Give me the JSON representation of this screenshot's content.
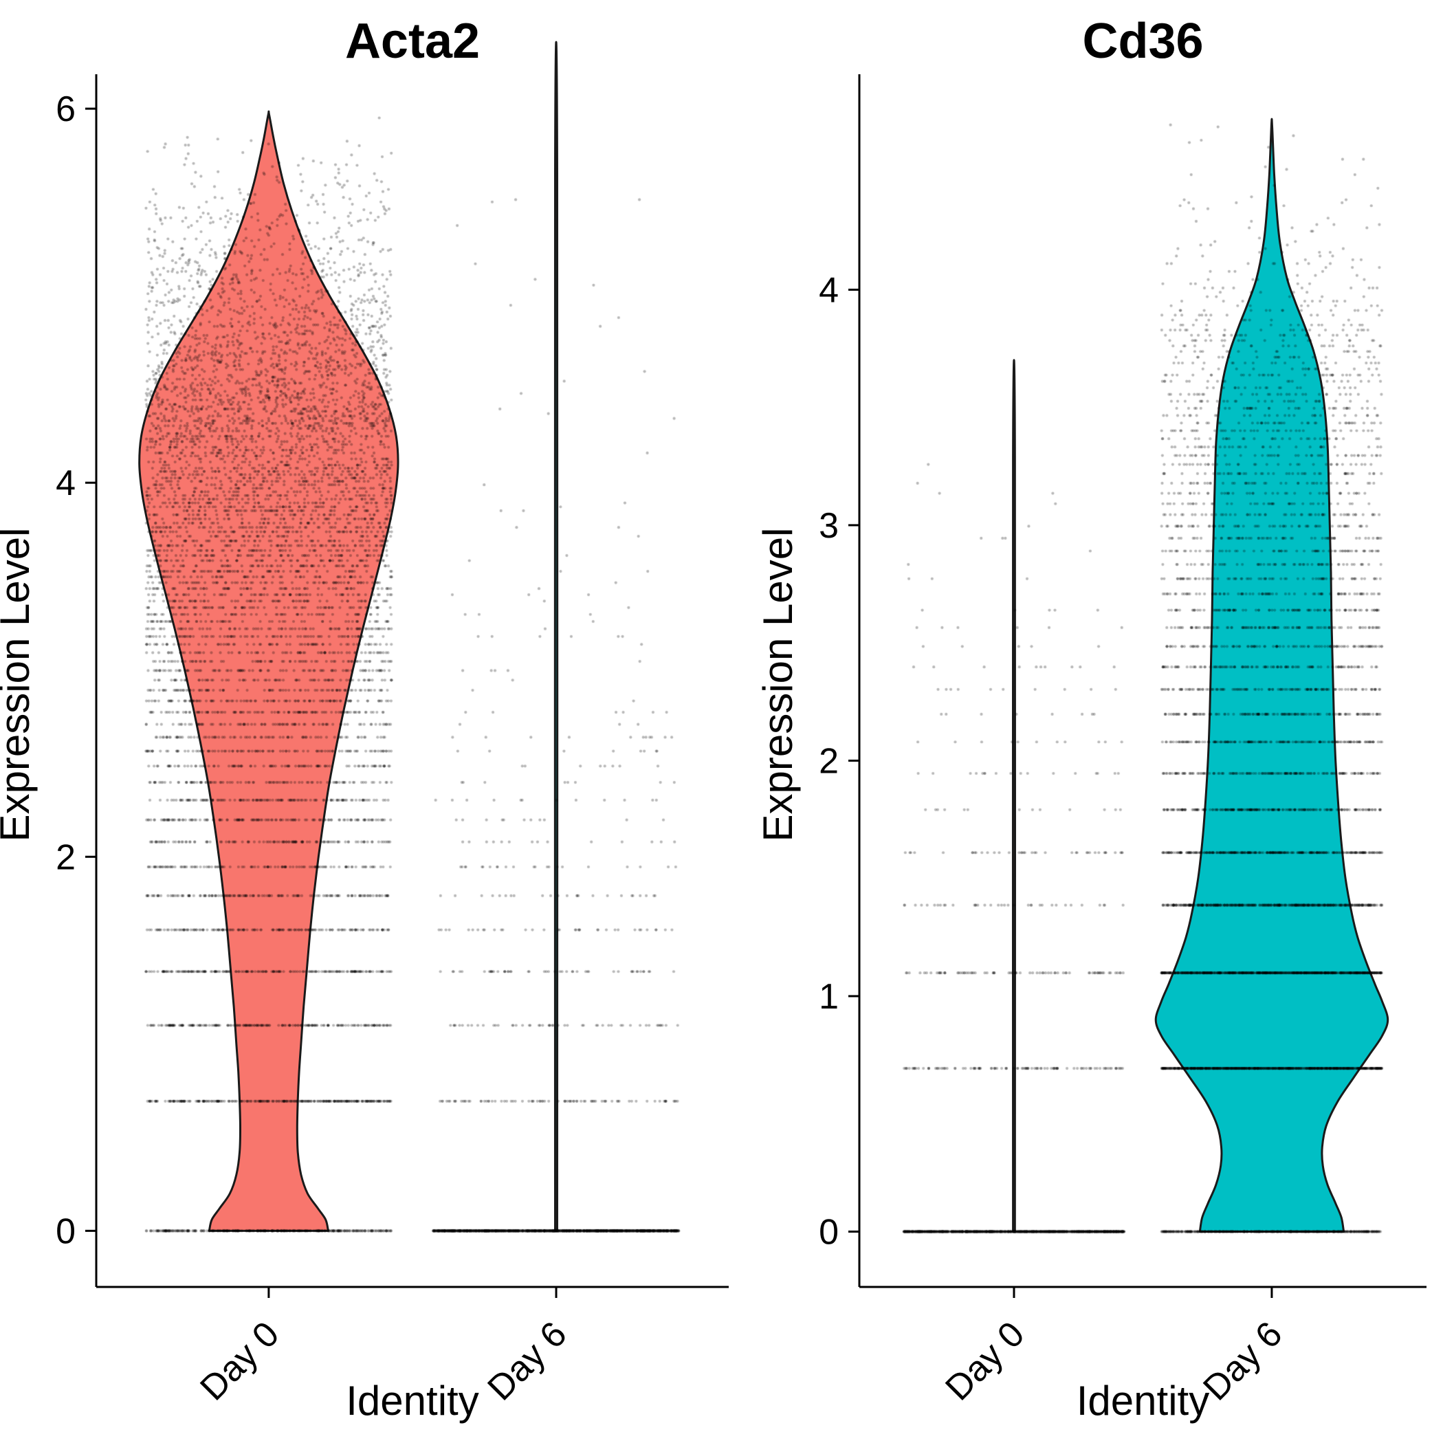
{
  "figure": {
    "background": "#FFFFFF",
    "text_color": "#000000",
    "axis_color": "#000000",
    "outline_color": "#1A1A1A",
    "point_color": "#000000",
    "day0_color": "#F8766D",
    "day6_color": "#00BFC4"
  },
  "chart_data": [
    {
      "type": "violin",
      "title": "Acta2",
      "xlabel": "Identity",
      "ylabel": "Expression Level",
      "categories": [
        "Day 0",
        "Day 6"
      ],
      "ylim": [
        -0.3,
        6.14
      ],
      "yticks": [
        0,
        2,
        4,
        6
      ],
      "legend": false,
      "series": [
        {
          "name": "Day 0",
          "fill": "#F8766D",
          "max_expression": 5.97,
          "n_points": 7000,
          "violin_width_profile": [
            [
              0,
              0.46
            ],
            [
              0.06,
              0.44
            ],
            [
              0.12,
              0.38
            ],
            [
              0.2,
              0.3
            ],
            [
              0.3,
              0.25
            ],
            [
              0.42,
              0.225
            ],
            [
              0.55,
              0.22
            ],
            [
              0.7,
              0.225
            ],
            [
              0.85,
              0.235
            ],
            [
              1,
              0.25
            ],
            [
              1.2,
              0.27
            ],
            [
              1.4,
              0.295
            ],
            [
              1.6,
              0.32
            ],
            [
              1.8,
              0.35
            ],
            [
              2,
              0.385
            ],
            [
              2.2,
              0.425
            ],
            [
              2.4,
              0.47
            ],
            [
              2.6,
              0.525
            ],
            [
              2.8,
              0.585
            ],
            [
              3,
              0.65
            ],
            [
              3.2,
              0.72
            ],
            [
              3.4,
              0.795
            ],
            [
              3.6,
              0.87
            ],
            [
              3.8,
              0.94
            ],
            [
              3.95,
              0.98
            ],
            [
              4.1,
              1
            ],
            [
              4.25,
              0.985
            ],
            [
              4.4,
              0.93
            ],
            [
              4.55,
              0.845
            ],
            [
              4.7,
              0.73
            ],
            [
              4.85,
              0.6
            ],
            [
              5,
              0.47
            ],
            [
              5.15,
              0.355
            ],
            [
              5.3,
              0.26
            ],
            [
              5.45,
              0.18
            ],
            [
              5.6,
              0.115
            ],
            [
              5.75,
              0.065
            ],
            [
              5.85,
              0.035
            ],
            [
              5.97,
              0.003
            ]
          ]
        },
        {
          "name": "Day 6",
          "fill": "#00BFC4",
          "max_expression": 5.65,
          "n_points": 1700,
          "violin_width_profile": [
            [
              0,
              0.008
            ],
            [
              5.65,
              0.008
            ]
          ],
          "points_profile": [
            [
              0,
              26
            ],
            [
              0.38,
              9
            ],
            [
              0.41,
              1.1
            ],
            [
              0.7,
              1.05
            ],
            [
              1,
              0.95
            ],
            [
              1.3,
              0.9
            ],
            [
              1.6,
              0.85
            ],
            [
              1.9,
              0.75
            ],
            [
              2.2,
              0.6
            ],
            [
              2.5,
              0.42
            ],
            [
              2.8,
              0.3
            ],
            [
              3.1,
              0.22
            ],
            [
              3.5,
              0.16
            ],
            [
              4,
              0.12
            ],
            [
              4.5,
              0.09
            ],
            [
              5,
              0.06
            ],
            [
              5.65,
              0.02
            ]
          ]
        }
      ]
    },
    {
      "type": "violin",
      "title": "Cd36",
      "xlabel": "Identity",
      "ylabel": "Expression Level",
      "categories": [
        "Day 0",
        "Day 6"
      ],
      "ylim": [
        -0.235,
        4.88
      ],
      "yticks": [
        0,
        1,
        2,
        3,
        4
      ],
      "legend": false,
      "series": [
        {
          "name": "Day 0",
          "fill": "#F8766D",
          "max_expression": 3.29,
          "n_points": 1600,
          "violin_width_profile": [
            [
              0,
              0.008
            ],
            [
              3.29,
              0.008
            ]
          ],
          "points_profile": [
            [
              0,
              26
            ],
            [
              0.38,
              9
            ],
            [
              0.41,
              1.2
            ],
            [
              0.7,
              1.1
            ],
            [
              1,
              1
            ],
            [
              1.3,
              0.9
            ],
            [
              1.6,
              0.8
            ],
            [
              1.9,
              0.65
            ],
            [
              2.2,
              0.5
            ],
            [
              2.5,
              0.38
            ],
            [
              2.8,
              0.25
            ],
            [
              3,
              0.15
            ],
            [
              3.29,
              0.03
            ]
          ]
        },
        {
          "name": "Day 6",
          "fill": "#00BFC4",
          "max_expression": 4.7,
          "n_points": 5200,
          "violin_width_profile": [
            [
              0,
              0.62
            ],
            [
              0.06,
              0.6
            ],
            [
              0.12,
              0.55
            ],
            [
              0.2,
              0.48
            ],
            [
              0.28,
              0.44
            ],
            [
              0.36,
              0.435
            ],
            [
              0.45,
              0.47
            ],
            [
              0.55,
              0.565
            ],
            [
              0.65,
              0.7
            ],
            [
              0.75,
              0.84
            ],
            [
              0.83,
              0.95
            ],
            [
              0.9,
              1
            ],
            [
              0.98,
              0.95
            ],
            [
              1.05,
              0.89
            ],
            [
              1.15,
              0.81
            ],
            [
              1.25,
              0.74
            ],
            [
              1.35,
              0.69
            ],
            [
              1.5,
              0.635
            ],
            [
              1.65,
              0.6
            ],
            [
              1.8,
              0.575
            ],
            [
              2,
              0.55
            ],
            [
              2.2,
              0.535
            ],
            [
              2.4,
              0.525
            ],
            [
              2.6,
              0.515
            ],
            [
              2.8,
              0.51
            ],
            [
              3,
              0.5
            ],
            [
              3.2,
              0.49
            ],
            [
              3.35,
              0.48
            ],
            [
              3.5,
              0.455
            ],
            [
              3.62,
              0.42
            ],
            [
              3.74,
              0.36
            ],
            [
              3.85,
              0.28
            ],
            [
              3.95,
              0.2
            ],
            [
              4.05,
              0.13
            ],
            [
              4.2,
              0.07
            ],
            [
              4.35,
              0.04
            ],
            [
              4.5,
              0.02
            ],
            [
              4.7,
              0.003
            ]
          ]
        }
      ]
    }
  ]
}
